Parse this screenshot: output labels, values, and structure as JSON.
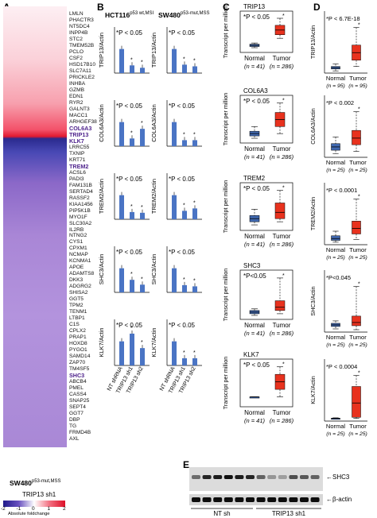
{
  "panelA": {
    "letter": "A",
    "genes_up": [
      "LMLN",
      "PHACTR3",
      "NT5DC4",
      "INPP4B",
      "STC2",
      "TMEM52B",
      "PCLO",
      "CSF2",
      "HSD17B10",
      "SLC7A11",
      "PRICKLE2",
      "INHBA",
      "GZMB",
      "EDN1",
      "RYR2",
      "GALNT3",
      "MACC1",
      "ARHGEF38"
    ],
    "genes_down": [
      "COL6A3",
      "TRIP13",
      "KLK7",
      "LRRC55",
      "TXNIP",
      "KRT71",
      "TREM2",
      "ACSL6",
      "PADI3",
      "FAM131B",
      "SERTAD4",
      "RASSF2",
      "KIAA1456",
      "PIP5K1B",
      "MYO1F",
      "SLC30A2",
      "IL2RB",
      "NTNG2",
      "CYS1",
      "CPXM1",
      "NCMAP",
      "KCNMA1",
      "APOE",
      "ADAMTS8",
      "DKK3",
      "ADGRG2",
      "SHISA2",
      "GGT5",
      "TPM2",
      "TENM1",
      "LTBP1",
      "C1S",
      "CPLX2",
      "PRAP1",
      "HOXD8",
      "PYGO1",
      "SAMD14",
      "ZAP70",
      "TM4SF5",
      "SHC3",
      "ABCB4",
      "PMEL",
      "CASS4",
      "SNAP25",
      "SEPT4",
      "GGT7",
      "DBP",
      "TG",
      "FRMD4B",
      "AXL"
    ],
    "highlighted": [
      "COL6A3",
      "TRIP13",
      "KLK7",
      "TREM2",
      "SHC3"
    ],
    "cell_line": "SW480",
    "cell_line_sup": "p53-mut,MSS",
    "condition": "TRIP13 sh1",
    "colorbar_ticks": [
      "-2",
      "-1",
      "0",
      "1",
      "2"
    ],
    "colorbar_label": "Absolute foldchange"
  },
  "panelB": {
    "letter": "B",
    "col1_title": "HCT116",
    "col1_sup": "p53 wt,MSI",
    "col2_title": "SW480",
    "col2_sup": "p53-mut,MSS",
    "x_labels": [
      "NT shRNA",
      "TRIP13 sh1",
      "TRIP13 sh2"
    ],
    "pvalue": "P < 0.05",
    "rows": [
      {
        "ylabel": "TRIP13/Actin",
        "hct": [
          1.0,
          0.32,
          0.22
        ],
        "sw": [
          1.0,
          0.35,
          0.28
        ]
      },
      {
        "ylabel": "COL6A3/Actin",
        "hct": [
          1.0,
          0.32,
          0.72
        ],
        "sw": [
          1.0,
          0.25,
          0.25
        ]
      },
      {
        "ylabel": "TREM2/Actin",
        "hct": [
          1.0,
          0.3,
          0.27
        ],
        "sw": [
          1.0,
          0.35,
          0.45
        ]
      },
      {
        "ylabel": "SHC3/Actin",
        "hct": [
          1.0,
          0.52,
          0.32
        ],
        "sw": [
          1.0,
          0.3,
          0.25
        ]
      },
      {
        "ylabel": "KLK7/Actin",
        "hct": [
          1.0,
          1.32,
          0.72
        ],
        "sw": [
          1.0,
          0.3,
          0.3
        ]
      }
    ]
  },
  "panelC": {
    "letter": "C",
    "ylabel": "Transcript per million",
    "groups": [
      "Normal",
      "Tumor"
    ],
    "n_normal": "(n = 41)",
    "n_tumor": "(n = 286)",
    "colors": {
      "normal": "#4169b0",
      "tumor": "#e8321e"
    },
    "rows": [
      {
        "gene": "TRIP13",
        "pvalue": "P < 0.05",
        "normal": [
          2,
          3,
          4,
          5,
          6
        ],
        "tumor": [
          10,
          13,
          17,
          21,
          27
        ]
      },
      {
        "gene": "COL6A3",
        "pvalue": "P < 0.05",
        "normal": [
          1,
          2,
          3,
          4,
          6
        ],
        "tumor": [
          3,
          6,
          9,
          12,
          16
        ]
      },
      {
        "gene": "TREM2",
        "pvalue": "P < 0.05",
        "normal": [
          1,
          2,
          3,
          4,
          6
        ],
        "tumor": [
          2,
          3,
          5,
          8,
          12
        ]
      },
      {
        "gene": "SHC3",
        "pvalue": "P<0.05",
        "normal": [
          0.5,
          1,
          1.5,
          2,
          2.5
        ],
        "tumor": [
          1,
          2,
          3,
          5,
          12
        ]
      },
      {
        "gene": "KLK7",
        "pvalue": "P < 0.05",
        "normal": [
          1,
          1,
          1,
          1,
          1
        ],
        "tumor": [
          1,
          2,
          3,
          4,
          5
        ]
      }
    ]
  },
  "panelD": {
    "letter": "D",
    "groups": [
      "Normal",
      "Tumor"
    ],
    "colors": {
      "normal": "#4169b0",
      "tumor": "#e8321e"
    },
    "rows": [
      {
        "ylabel": "TRIP13/Actin",
        "pvalue": "P < 6.7E-18",
        "n_normal": "(n = 95)",
        "n_tumor": "(n = 95)"
      },
      {
        "ylabel": "COL6A3/Actin",
        "pvalue": "P < 0.002",
        "n_normal": "(n = 25)",
        "n_tumor": "(n = 25)"
      },
      {
        "ylabel": "TREM2/Actin",
        "pvalue": "P < 0.0001",
        "n_normal": "(n = 25)",
        "n_tumor": "(n = 25)"
      },
      {
        "ylabel": "SHC3/Actin",
        "pvalue": "P<0.045",
        "n_normal": "(n = 25)",
        "n_tumor": "(n = 25)"
      },
      {
        "ylabel": "KLK7/Actin",
        "pvalue": "P < 0.0004",
        "n_normal": "(n = 25)",
        "n_tumor": "(n = 25)"
      }
    ]
  },
  "panelE": {
    "letter": "E",
    "band1": "SHC3",
    "band2": "β-actin",
    "group1": "NT sh",
    "group2": "TRIP13 sh1"
  }
}
